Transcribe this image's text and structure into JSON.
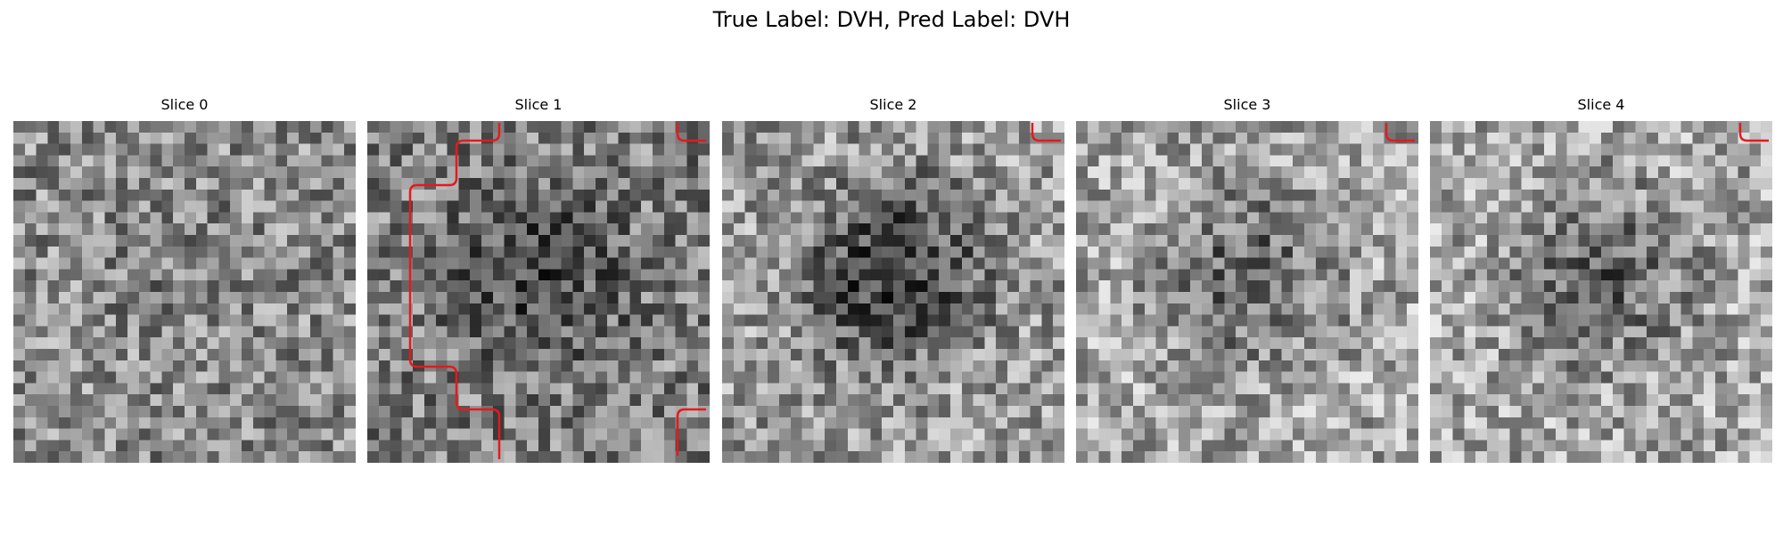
{
  "figure": {
    "title": "True Label: DVH, Pred Label: DVH"
  },
  "style": {
    "contour_color": "#e41a1c"
  },
  "slices": [
    {
      "label": "Slice 0",
      "seed": 11,
      "center_dark": 0.05,
      "brightness": 0.55
    },
    {
      "label": "Slice 1",
      "seed": 23,
      "center_dark": 0.25,
      "brightness": 0.5
    },
    {
      "label": "Slice 2",
      "seed": 37,
      "center_dark": 0.45,
      "brightness": 0.6
    },
    {
      "label": "Slice 3",
      "seed": 49,
      "center_dark": 0.3,
      "brightness": 0.65
    },
    {
      "label": "Slice 4",
      "seed": 61,
      "center_dark": 0.3,
      "brightness": 0.65
    }
  ]
}
